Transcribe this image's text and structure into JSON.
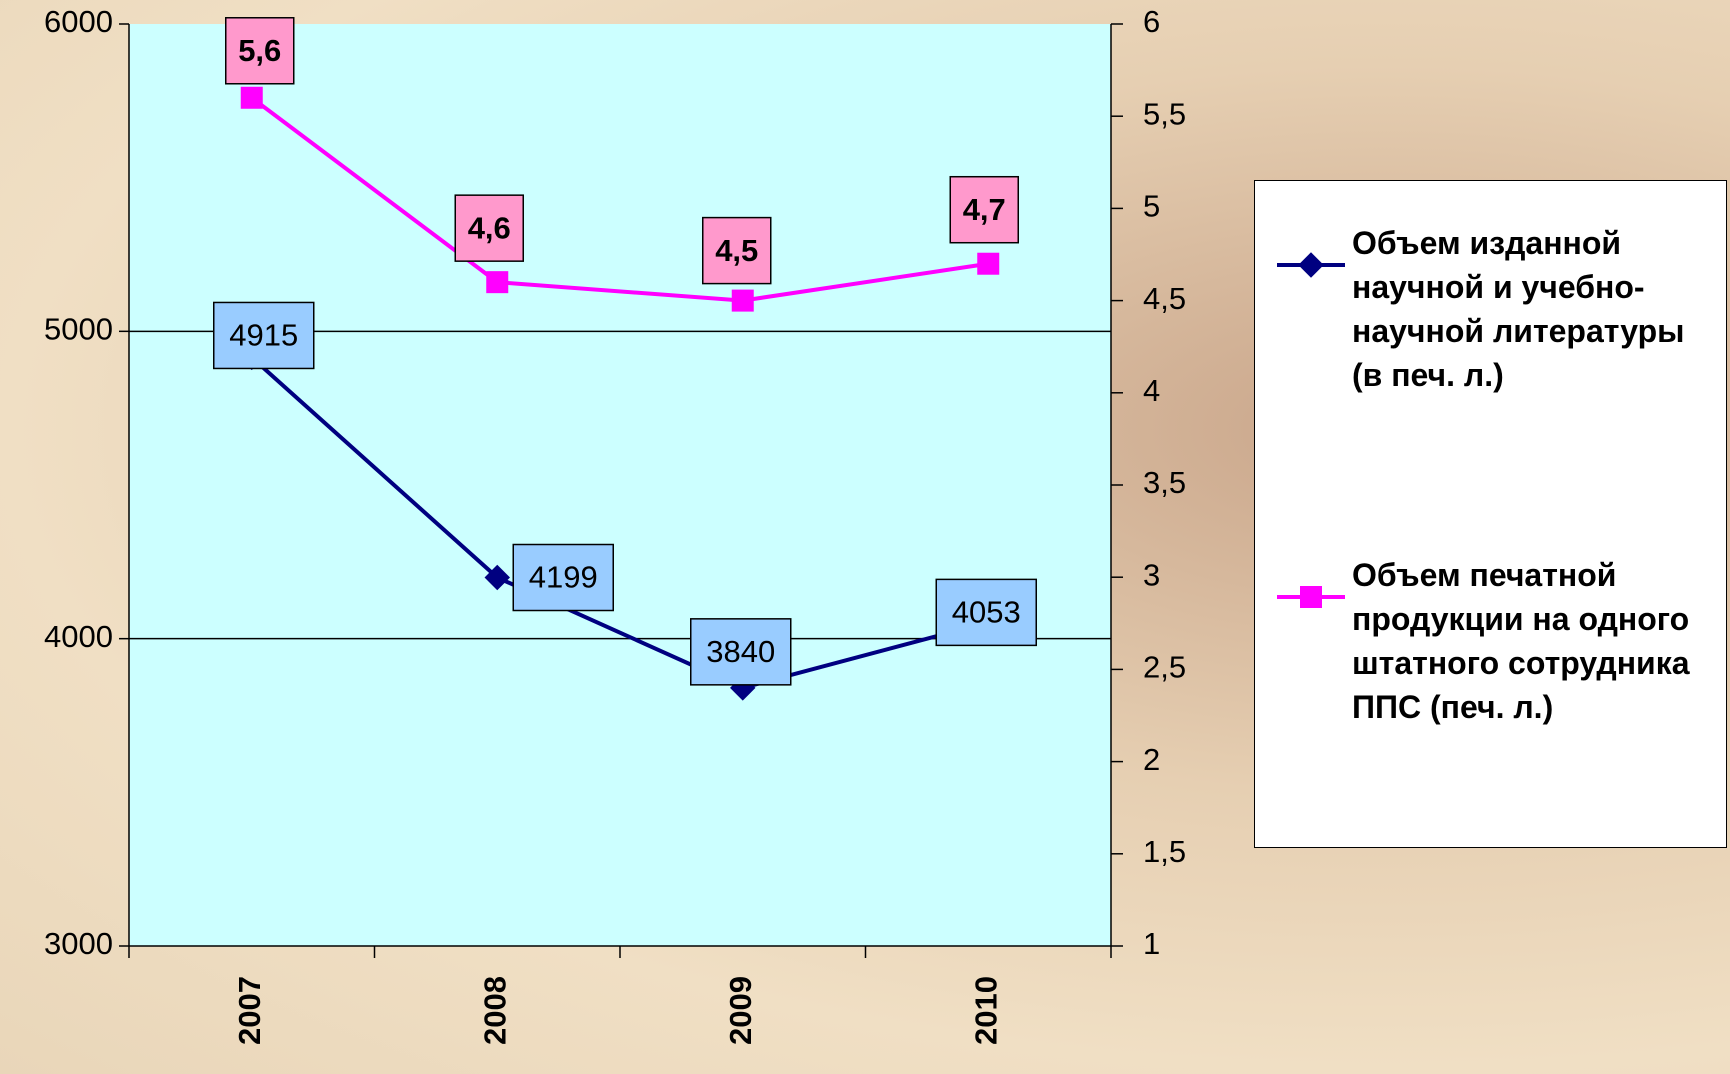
{
  "chart_data": {
    "type": "line",
    "categories": [
      "2007",
      "2008",
      "2009",
      "2010"
    ],
    "series": [
      {
        "name": "Объем изданной научной и учебно-научной литературы (в печ. л.)",
        "color": "#000080",
        "values": [
          4915,
          4199,
          3840,
          4053
        ]
      },
      {
        "name": "Объем печатной продукции на одного штатного сотрудника ППС (печ. л.)",
        "color": "#ff00ff",
        "axis": "y2",
        "values": [
          5.6,
          4.6,
          4.5,
          4.7
        ],
        "value_labels": [
          "5,6",
          "4,6",
          "4,5",
          "4,7"
        ]
      }
    ],
    "ylim": [
      3000,
      6000
    ],
    "yticks": [
      3000,
      4000,
      5000,
      6000
    ],
    "y2lim": [
      1,
      6
    ],
    "y2ticks": [
      1,
      {
        "value": 1.5,
        "label": "1,5"
      },
      2,
      {
        "value": 2.5,
        "label": "2,5"
      },
      3,
      {
        "value": 3.5,
        "label": "3,5"
      },
      4,
      {
        "value": 4.5,
        "label": "4,5"
      },
      5,
      {
        "value": 5.5,
        "label": "5,5"
      },
      6
    ],
    "grid": true,
    "legend": "right"
  }
}
